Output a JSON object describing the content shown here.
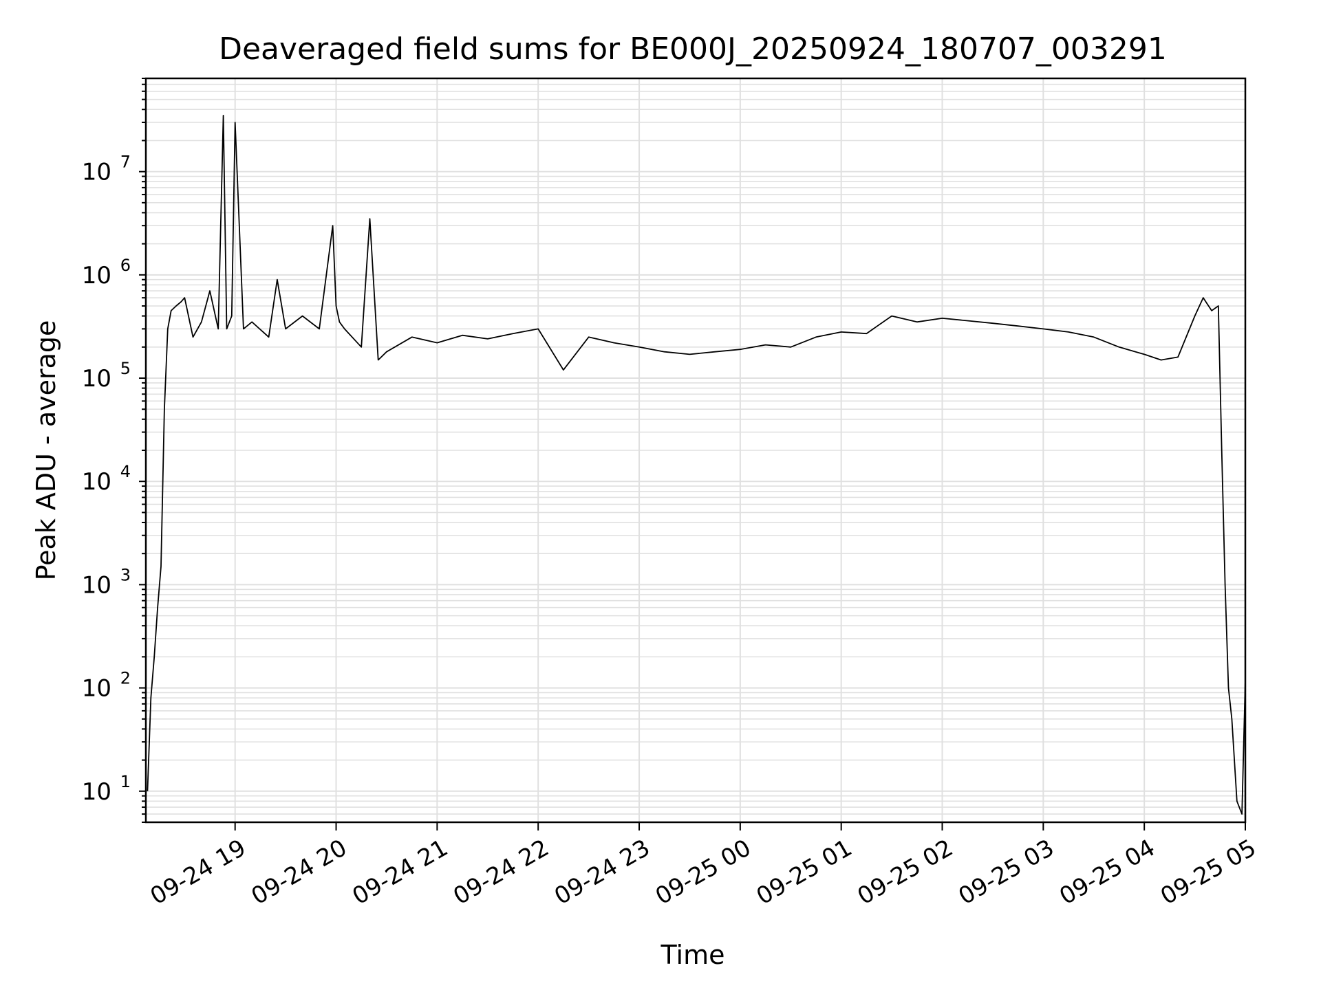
{
  "chart_data": {
    "type": "line",
    "title": "Deaveraged field sums for BE000J_20250924_180707_003291",
    "xlabel": "Time",
    "ylabel": "Peak ADU - average",
    "x_ticks": [
      "09-24 19",
      "09-24 20",
      "09-24 21",
      "09-24 22",
      "09-24 23",
      "09-25 00",
      "09-25 01",
      "09-25 02",
      "09-25 03",
      "09-25 04",
      "09-25 05"
    ],
    "y_scale": "log",
    "y_ticks": [
      {
        "base": "10",
        "exp": "1"
      },
      {
        "base": "10",
        "exp": "2"
      },
      {
        "base": "10",
        "exp": "3"
      },
      {
        "base": "10",
        "exp": "4"
      },
      {
        "base": "10",
        "exp": "5"
      },
      {
        "base": "10",
        "exp": "6"
      },
      {
        "base": "10",
        "exp": "7"
      }
    ],
    "xlim": [
      "09-24 18:07",
      "09-25 05:00"
    ],
    "ylim": [
      5,
      80000000
    ],
    "grid": true,
    "line_color": "#000000",
    "grid_color": "#e0e0e0",
    "series": [
      {
        "x": [
          "09-24 18:08",
          "09-24 18:10",
          "09-24 18:12",
          "09-24 18:14",
          "09-24 18:16",
          "09-24 18:18",
          "09-24 18:20",
          "09-24 18:22",
          "09-24 18:25",
          "09-24 18:28",
          "09-24 18:30",
          "09-24 18:35",
          "09-24 18:40",
          "09-24 18:45",
          "09-24 18:50",
          "09-24 18:53",
          "09-24 18:55",
          "09-24 18:58",
          "09-24 19:00",
          "09-24 19:05",
          "09-24 19:10",
          "09-24 19:20",
          "09-24 19:25",
          "09-24 19:30",
          "09-24 19:40",
          "09-24 19:50",
          "09-24 19:58",
          "09-24 20:00",
          "09-24 20:02",
          "09-24 20:05",
          "09-24 20:15",
          "09-24 20:20",
          "09-24 20:25",
          "09-24 20:30",
          "09-24 20:45",
          "09-24 21:00",
          "09-24 21:15",
          "09-24 21:30",
          "09-24 21:45",
          "09-24 22:00",
          "09-24 22:15",
          "09-24 22:30",
          "09-24 22:45",
          "09-24 23:00",
          "09-24 23:15",
          "09-24 23:30",
          "09-24 23:45",
          "09-25 00:00",
          "09-25 00:15",
          "09-25 00:30",
          "09-25 00:45",
          "09-25 01:00",
          "09-25 01:15",
          "09-25 01:30",
          "09-25 01:45",
          "09-25 02:00",
          "09-25 02:15",
          "09-25 02:30",
          "09-25 02:45",
          "09-25 03:00",
          "09-25 03:15",
          "09-25 03:30",
          "09-25 03:45",
          "09-25 04:00",
          "09-25 04:10",
          "09-25 04:20",
          "09-25 04:30",
          "09-25 04:35",
          "09-25 04:40",
          "09-25 04:44",
          "09-25 04:46",
          "09-25 04:48",
          "09-25 04:50",
          "09-25 04:52",
          "09-25 04:55",
          "09-25 04:58",
          "09-25 05:00"
        ],
        "y": [
          10,
          80,
          200,
          600,
          1500,
          50000,
          300000,
          450000,
          500000,
          550000,
          600000,
          250000,
          350000,
          700000,
          300000,
          35000000,
          300000,
          400000,
          30000000,
          300000,
          350000,
          250000,
          900000,
          300000,
          400000,
          300000,
          3000000,
          500000,
          350000,
          300000,
          200000,
          3500000,
          150000,
          180000,
          250000,
          220000,
          260000,
          240000,
          270000,
          300000,
          120000,
          250000,
          220000,
          200000,
          180000,
          170000,
          180000,
          190000,
          210000,
          200000,
          250000,
          280000,
          270000,
          400000,
          350000,
          380000,
          360000,
          340000,
          320000,
          300000,
          280000,
          250000,
          200000,
          170000,
          150000,
          160000,
          400000,
          600000,
          450000,
          500000,
          20000,
          1000,
          100,
          50,
          8,
          6,
          120
        ]
      }
    ]
  }
}
